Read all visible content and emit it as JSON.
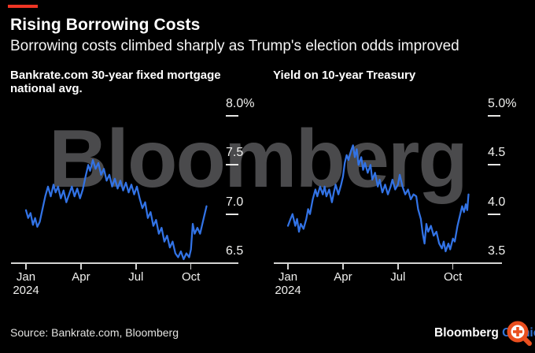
{
  "header": {
    "title": "Rising Borrowing Costs",
    "subtitle": "Borrowing costs climbed sharply as Trump's election odds improved",
    "accent_color": "#ee3524"
  },
  "watermark": "Bloomberg",
  "chart_data": [
    {
      "type": "line",
      "title": "Bankrate.com 30-year fixed mortgage national avg.",
      "title_display": "Bankrate.com 30-year fixed mortgage\nnational avg.",
      "unit": "%",
      "line_color": "#3273e6",
      "ylim": [
        6.5,
        8.0
      ],
      "yticks": [
        {
          "label": "8.0%",
          "value": 8.0
        },
        {
          "label": "7.5",
          "value": 7.5
        },
        {
          "label": "7.0",
          "value": 7.0
        },
        {
          "label": "6.5",
          "value": 6.5
        }
      ],
      "xticks": [
        {
          "label": "Jan",
          "sublabel": "2024",
          "month": 0
        },
        {
          "label": "Apr",
          "month": 3
        },
        {
          "label": "Jul",
          "month": 6
        },
        {
          "label": "Oct",
          "month": 9
        }
      ],
      "x_months": [
        0,
        0.12,
        0.25,
        0.38,
        0.5,
        0.62,
        0.75,
        0.9,
        1.05,
        1.2,
        1.35,
        1.5,
        1.62,
        1.75,
        1.9,
        2.05,
        2.2,
        2.35,
        2.5,
        2.65,
        2.8,
        2.95,
        3.1,
        3.25,
        3.4,
        3.5,
        3.65,
        3.8,
        3.95,
        4.1,
        4.25,
        4.4,
        4.55,
        4.7,
        4.85,
        5.0,
        5.15,
        5.3,
        5.45,
        5.6,
        5.75,
        5.9,
        6.05,
        6.2,
        6.35,
        6.5,
        6.65,
        6.8,
        6.95,
        7.1,
        7.25,
        7.4,
        7.55,
        7.7,
        7.85,
        8.0,
        8.15,
        8.3,
        8.45,
        8.6,
        8.75,
        8.9,
        9.0,
        9.1,
        9.2,
        9.35,
        9.5,
        9.65,
        9.85
      ],
      "values": [
        7.04,
        6.96,
        7.01,
        6.89,
        6.96,
        6.87,
        6.92,
        7.05,
        7.18,
        7.28,
        7.18,
        7.3,
        7.22,
        7.28,
        7.16,
        7.24,
        7.12,
        7.2,
        7.28,
        7.18,
        7.26,
        7.16,
        7.25,
        7.38,
        7.5,
        7.44,
        7.55,
        7.46,
        7.52,
        7.4,
        7.46,
        7.34,
        7.4,
        7.28,
        7.36,
        7.26,
        7.34,
        7.24,
        7.32,
        7.22,
        7.3,
        7.2,
        7.28,
        7.16,
        7.06,
        7.12,
        6.96,
        7.02,
        6.88,
        6.94,
        6.8,
        6.86,
        6.72,
        6.78,
        6.66,
        6.72,
        6.6,
        6.56,
        6.62,
        6.54,
        6.6,
        6.56,
        6.64,
        6.9,
        6.8,
        6.86,
        6.8,
        6.92,
        7.08
      ]
    },
    {
      "type": "line",
      "title": "Yield on 10-year Treasury",
      "title_display": "Yield on 10-year Treasury",
      "unit": "%",
      "line_color": "#3273e6",
      "ylim": [
        3.5,
        5.0
      ],
      "yticks": [
        {
          "label": "5.0%",
          "value": 5.0
        },
        {
          "label": "4.5",
          "value": 4.5
        },
        {
          "label": "4.0",
          "value": 4.0
        },
        {
          "label": "3.5",
          "value": 3.5
        }
      ],
      "xticks": [
        {
          "label": "Jan",
          "sublabel": "2024",
          "month": 0
        },
        {
          "label": "Apr",
          "month": 3
        },
        {
          "label": "Jul",
          "month": 6
        },
        {
          "label": "Oct",
          "month": 9
        }
      ],
      "x_months": [
        0,
        0.12,
        0.25,
        0.4,
        0.5,
        0.6,
        0.7,
        0.85,
        1.0,
        1.1,
        1.2,
        1.35,
        1.5,
        1.6,
        1.75,
        1.9,
        2.0,
        2.1,
        2.25,
        2.4,
        2.5,
        2.6,
        2.75,
        2.9,
        3.0,
        3.1,
        3.2,
        3.3,
        3.45,
        3.55,
        3.65,
        3.75,
        3.85,
        4.0,
        4.1,
        4.2,
        4.35,
        4.5,
        4.6,
        4.75,
        4.9,
        5.0,
        5.15,
        5.3,
        5.45,
        5.6,
        5.7,
        5.85,
        6.0,
        6.1,
        6.25,
        6.4,
        6.55,
        6.7,
        6.85,
        7.0,
        7.1,
        7.25,
        7.35,
        7.45,
        7.55,
        7.65,
        7.8,
        7.95,
        8.1,
        8.25,
        8.4,
        8.5,
        8.6,
        8.75,
        8.85,
        9.0,
        9.1,
        9.25,
        9.4,
        9.5,
        9.6,
        9.7,
        9.78,
        9.85
      ],
      "values": [
        3.88,
        3.94,
        4.0,
        3.88,
        3.95,
        3.82,
        3.9,
        3.85,
        3.95,
        4.05,
        4.0,
        4.15,
        4.25,
        4.18,
        4.28,
        4.2,
        4.28,
        4.18,
        4.25,
        4.12,
        4.22,
        4.3,
        4.2,
        4.3,
        4.38,
        4.52,
        4.6,
        4.55,
        4.65,
        4.7,
        4.58,
        4.66,
        4.5,
        4.58,
        4.45,
        4.52,
        4.42,
        4.5,
        4.35,
        4.42,
        4.28,
        4.35,
        4.22,
        4.3,
        4.2,
        4.28,
        4.35,
        4.25,
        4.3,
        4.4,
        4.28,
        4.2,
        4.25,
        4.15,
        4.2,
        4.18,
        4.05,
        3.95,
        3.8,
        3.7,
        3.9,
        3.82,
        3.88,
        3.78,
        3.82,
        3.7,
        3.65,
        3.72,
        3.62,
        3.7,
        3.64,
        3.75,
        3.72,
        3.88,
        4.0,
        4.08,
        4.02,
        4.1,
        4.04,
        4.2
      ]
    }
  ],
  "footer": {
    "source": "Source: Bankrate.com, Bloomberg",
    "logo_bloomberg": "Bloomberg",
    "logo_opinion": "Opinion",
    "opinion_color": "#3173d4",
    "zoom_icon_color": "#ea4f1f"
  }
}
